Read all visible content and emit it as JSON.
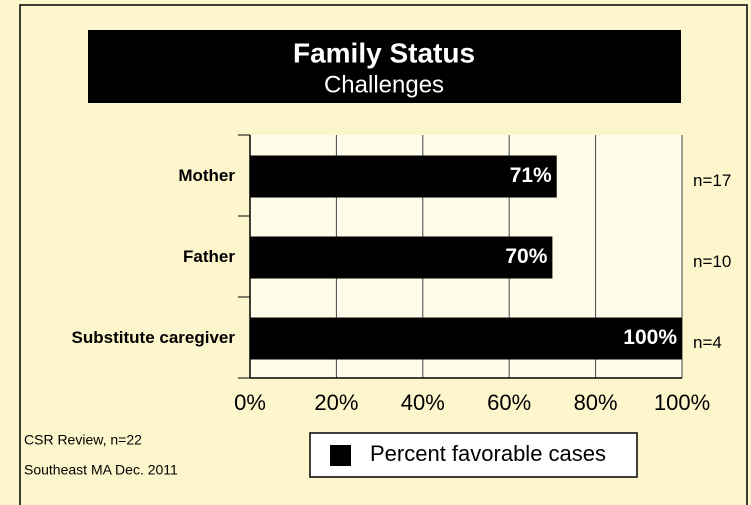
{
  "chart_data": {
    "type": "bar",
    "orientation": "horizontal",
    "title": "Family Status",
    "subtitle": "Challenges",
    "categories": [
      "Mother",
      "Father",
      "Substitute caregiver"
    ],
    "series": [
      {
        "name": "Percent favorable cases",
        "color": "#000000",
        "values": [
          71,
          70,
          100
        ],
        "value_labels": [
          "71%",
          "70%",
          "100%"
        ]
      }
    ],
    "annotations": [
      "n=17",
      "n=10",
      "n=4"
    ],
    "notes": [
      "CSR Review, n=22",
      "Southeast MA  Dec. 2011"
    ],
    "xlim": [
      0,
      100
    ],
    "xticks": [
      {
        "value": 0,
        "label": "0%"
      },
      {
        "value": 20,
        "label": "20%"
      },
      {
        "value": 40,
        "label": "40%"
      },
      {
        "value": 60,
        "label": "60%"
      },
      {
        "value": 80,
        "label": "80%"
      },
      {
        "value": 100,
        "label": "100%"
      }
    ],
    "grid": true
  }
}
